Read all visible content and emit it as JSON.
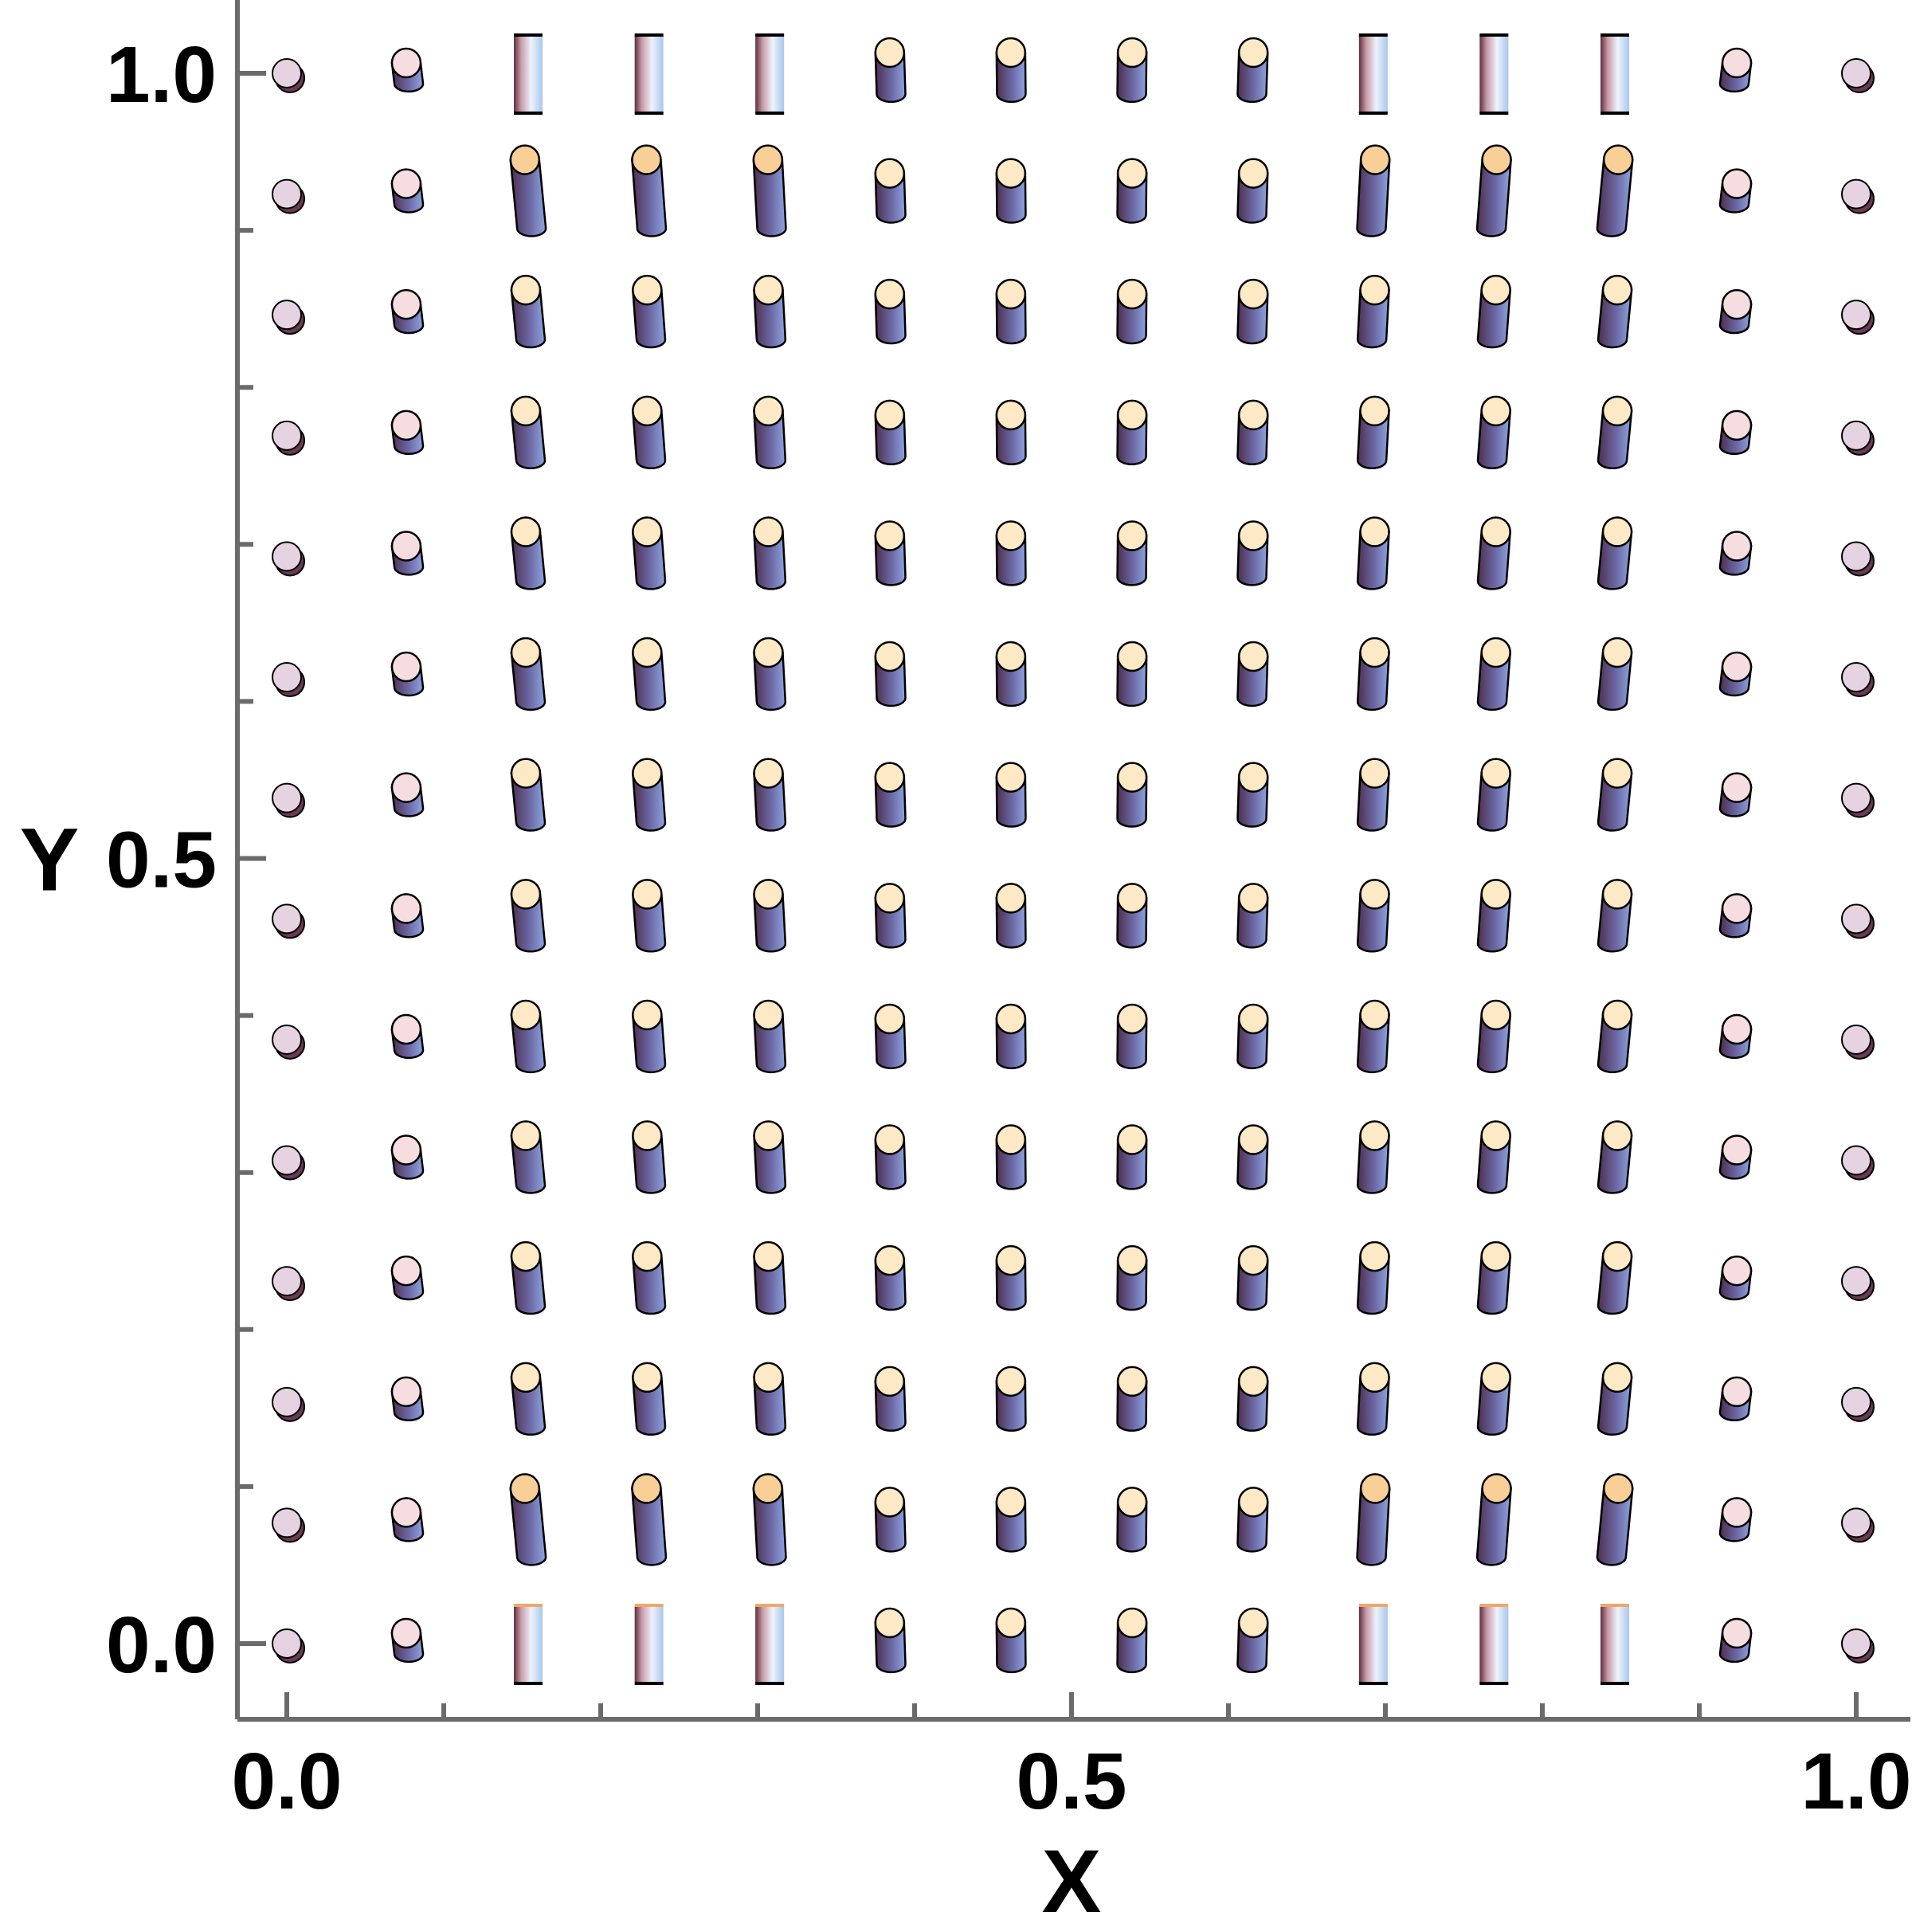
{
  "chart_data": {
    "type": "scatter",
    "marker": "cylinder",
    "title": "",
    "xlabel": "X",
    "ylabel": "Y",
    "xlim": [
      -0.03,
      1.03
    ],
    "ylim": [
      -0.05,
      1.05
    ],
    "xticks": [
      0.0,
      0.5,
      1.0
    ],
    "xtick_labels": [
      "0.0",
      "0.5",
      "1.0"
    ],
    "yticks": [
      0.0,
      0.5,
      1.0
    ],
    "ytick_labels": [
      "0.0",
      "0.5",
      "1.0"
    ],
    "minor_ticks_x": [
      0.1,
      0.2,
      0.3,
      0.4,
      0.6,
      0.7,
      0.8,
      0.9
    ],
    "minor_ticks_y": [
      0.1,
      0.2,
      0.3,
      0.4,
      0.6,
      0.7,
      0.8,
      0.9
    ],
    "grid": false,
    "x": [
      0.0,
      0.0769,
      0.1538,
      0.2308,
      0.3077,
      0.3846,
      0.4615,
      0.5385,
      0.6154,
      0.6923,
      0.7692,
      0.8462,
      0.9231,
      1.0
    ],
    "y": [
      0.0,
      0.0769,
      0.1538,
      0.2308,
      0.3077,
      0.3846,
      0.4615,
      0.5385,
      0.6154,
      0.6923,
      0.7692,
      0.8462,
      0.9231,
      1.0
    ],
    "colors": {
      "top": "#fbe6c4",
      "top_cap": "#f7c98e",
      "body_dark": "#5a3a5c",
      "body_light": "#7b8fcf",
      "rim": "#000000",
      "disk": "#e6d6e3"
    }
  }
}
